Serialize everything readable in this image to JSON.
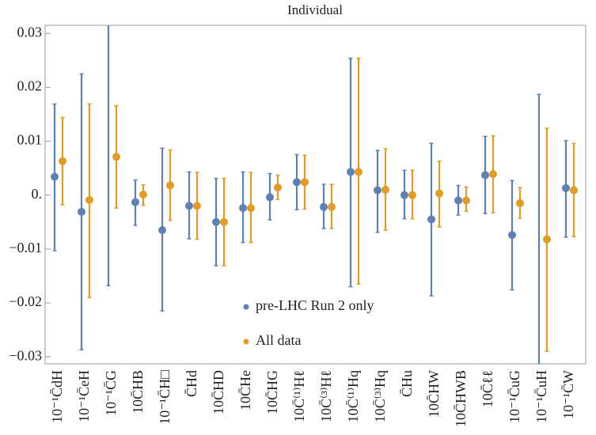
{
  "chart_data": {
    "type": "errorbar",
    "title": "Individual",
    "categories": [
      "10⁻¹C̄dH",
      "10⁻¹C̄eH",
      "10⁻¹C̄G",
      "10C̄HB",
      "10⁻¹C̄H□",
      "C̄Hd",
      "10C̄HD",
      "10C̄He",
      "10C̄HG",
      "10C̄⁽¹⁾Hℓ",
      "10C̄⁽³⁾Hℓ",
      "10C̄⁽¹⁾Hq",
      "10C̄⁽³⁾Hq",
      "C̄Hu",
      "10C̄HW",
      "10C̄HWB",
      "10C̄ℓℓ",
      "10⁻¹C̄uG",
      "10⁻¹C̄uH",
      "10⁻¹C̄W"
    ],
    "series": [
      {
        "name": "pre-LHC Run 2 only",
        "color": "#5e81b5",
        "values": [
          0.0034,
          -0.0031,
          null,
          -0.0013,
          -0.0065,
          -0.002,
          -0.005,
          -0.0024,
          -0.0004,
          0.0024,
          -0.0022,
          0.0043,
          0.0009,
          0,
          -0.0045,
          -0.001,
          0.0037,
          -0.0074,
          null,
          0.0013
        ],
        "upper": [
          0.0169,
          0.0225,
          null,
          0.0028,
          0.0087,
          0.0043,
          0.0031,
          0.0043,
          0.004,
          0.0075,
          0.002,
          0.0254,
          0.0083,
          0.0046,
          0.0096,
          0.0018,
          0.0109,
          0.0027,
          0.0187,
          0.0101
        ],
        "lower": [
          -0.0103,
          -0.0287,
          -0.0168,
          -0.0056,
          -0.0215,
          -0.0081,
          -0.0131,
          -0.0088,
          -0.0046,
          -0.0027,
          -0.0062,
          -0.017,
          -0.0069,
          -0.0044,
          -0.0187,
          -0.0037,
          -0.0034,
          -0.0176,
          null,
          -0.0078
        ]
      },
      {
        "name": "All data",
        "color": "#e19c24",
        "values": [
          0.0063,
          -0.0009,
          0.0071,
          0.0001,
          0.0018,
          -0.002,
          -0.005,
          -0.0024,
          0.0014,
          0.0024,
          -0.0022,
          0.0043,
          0.001,
          0,
          0.0003,
          -0.001,
          0.0039,
          -0.0015,
          -0.0082,
          0.0009
        ],
        "upper": [
          0.0144,
          0.0169,
          0.0166,
          0.0019,
          0.0084,
          0.0042,
          0.0031,
          0.0042,
          0.0037,
          0.0074,
          0.002,
          0.0254,
          0.0086,
          0.0046,
          0.0063,
          0.0015,
          0.011,
          0.0014,
          0.0124,
          0.0096
        ],
        "lower": [
          -0.0018,
          -0.019,
          -0.0024,
          -0.0019,
          -0.0047,
          -0.0082,
          -0.0131,
          -0.0088,
          -0.0008,
          -0.0026,
          -0.0062,
          -0.0165,
          -0.0065,
          -0.0044,
          -0.0059,
          -0.003,
          -0.0033,
          -0.0043,
          -0.029,
          -0.0077
        ]
      }
    ],
    "ylim": [
      -0.0313,
      0.0315
    ],
    "yticks": [
      {
        "value": -0.03,
        "label": "−0.03"
      },
      {
        "value": -0.02,
        "label": "−0.02"
      },
      {
        "value": -0.01,
        "label": "−0.01"
      },
      {
        "value": 0,
        "label": "0."
      },
      0.01,
      0.02,
      0.03
    ],
    "legend": "center"
  }
}
